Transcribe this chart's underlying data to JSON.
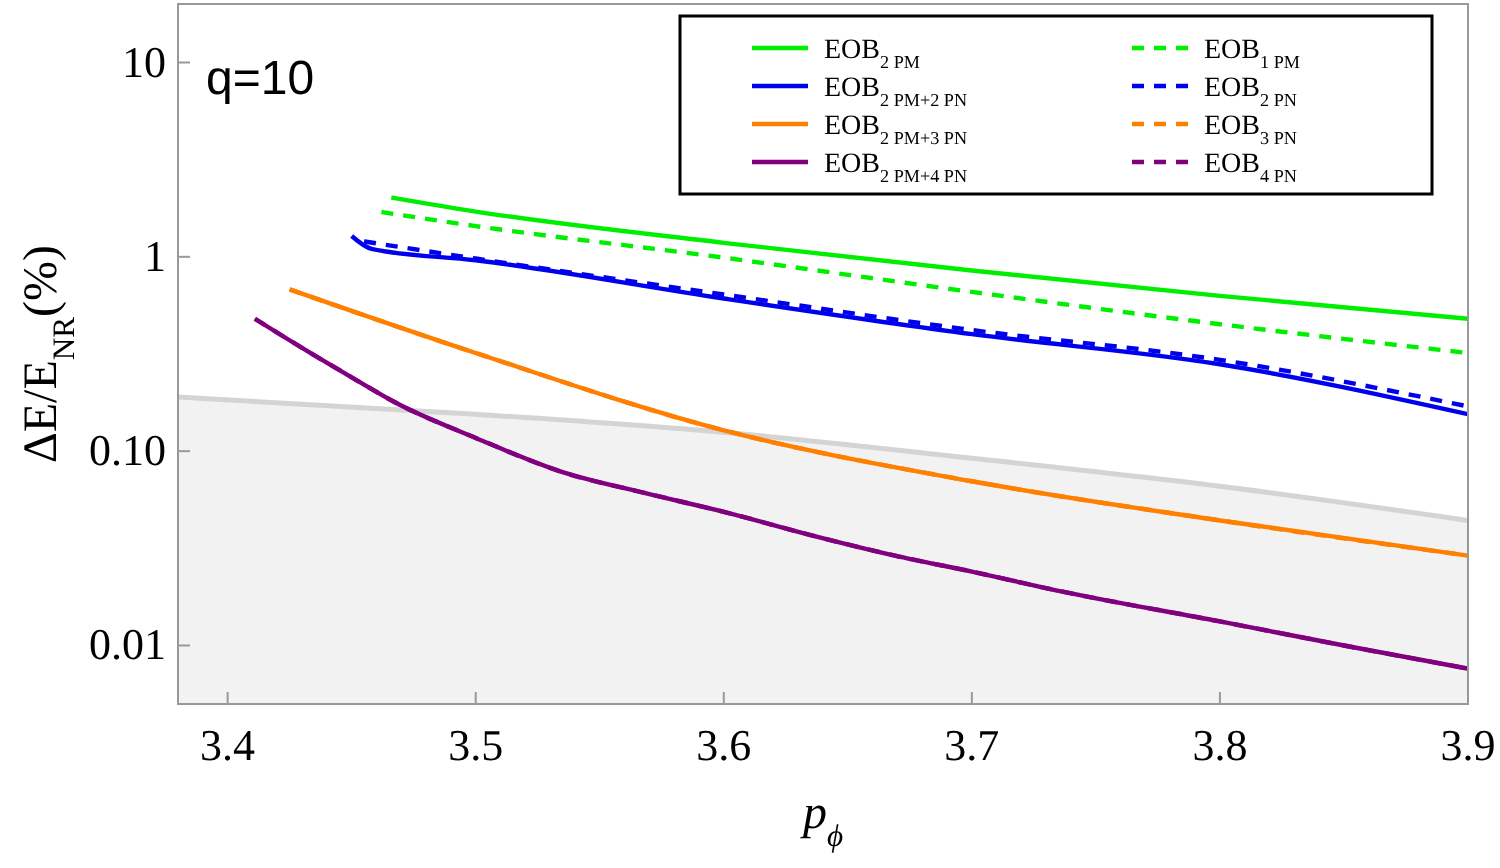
{
  "chart_data": {
    "type": "line",
    "xlabel": "p$_{ϕ}$",
    "ylabel": "ΔE/E$_{NR}$(%)",
    "annotations": [
      "q=10"
    ],
    "log": "y",
    "xlim": [
      3.38,
      3.9
    ],
    "xticks": [
      3.4,
      3.5,
      3.6,
      3.7,
      3.8,
      3.9
    ],
    "ylim": [
      0.005,
      20
    ],
    "yticks": [
      10,
      1,
      {
        "value": 0.1,
        "label": "0.10"
      },
      0.01
    ],
    "grid": false,
    "legend": "top right",
    "series": [
      {
        "name": "EOB$_{2 PM}$",
        "color": "#00ee00",
        "line_style": "solid",
        "x": [
          3.466,
          3.5,
          3.6,
          3.7,
          3.8,
          3.9
        ],
        "values": [
          2.02,
          1.71,
          1.18,
          0.85,
          0.63,
          0.48
        ]
      },
      {
        "name": "EOB$_{2 PM+2 PN}$",
        "color": "#0000ee",
        "line_style": "solid",
        "x": [
          3.45,
          3.458,
          3.5,
          3.6,
          3.7,
          3.8,
          3.9
        ],
        "values": [
          1.28,
          1.1,
          0.96,
          0.61,
          0.4,
          0.28,
          0.155
        ]
      },
      {
        "name": "EOB$_{2 PM+3 PN}$",
        "color": "#ff8000",
        "line_style": "solid",
        "x": [
          3.425,
          3.5,
          3.6,
          3.7,
          3.8,
          3.9
        ],
        "values": [
          0.68,
          0.32,
          0.128,
          0.07,
          0.044,
          0.029
        ]
      },
      {
        "name": "EOB$_{2 PM+4 PN}$",
        "color": "#800080",
        "line_style": "solid",
        "x": [
          3.411,
          3.43,
          3.45,
          3.468,
          3.5,
          3.535,
          3.568,
          3.602,
          3.635,
          3.669,
          3.7,
          3.736,
          3.8,
          3.85,
          3.9
        ],
        "values": [
          0.48,
          0.34,
          0.24,
          0.177,
          0.117,
          0.078,
          0.061,
          0.048,
          0.037,
          0.029,
          0.024,
          0.019,
          0.0133,
          0.01,
          0.0076
        ]
      },
      {
        "name": "EOB$_{1 PM}$",
        "color": "#00ee00",
        "line_style": "dashed",
        "x": [
          3.462,
          3.5,
          3.6,
          3.7,
          3.8,
          3.9
        ],
        "values": [
          1.7,
          1.44,
          0.99,
          0.66,
          0.45,
          0.32
        ]
      },
      {
        "name": "EOB$_{2 PN}$",
        "color": "#0000ee",
        "line_style": "dashed",
        "x": [
          3.455,
          3.5,
          3.6,
          3.7,
          3.8,
          3.9
        ],
        "values": [
          1.2,
          0.98,
          0.64,
          0.42,
          0.295,
          0.17
        ]
      },
      {
        "name": "EOB$_{3 PN}$",
        "color": "#ff8000",
        "line_style": "dashed",
        "x": [
          3.425,
          3.5,
          3.6,
          3.7,
          3.8,
          3.9
        ],
        "values": [
          0.68,
          0.32,
          0.128,
          0.07,
          0.044,
          0.029
        ]
      },
      {
        "name": "EOB$_{4 PN}$",
        "color": "#800080",
        "line_style": "dashed",
        "x": [
          3.411,
          3.43,
          3.45,
          3.468,
          3.5,
          3.535,
          3.568,
          3.602,
          3.635,
          3.669,
          3.7,
          3.736,
          3.8,
          3.85,
          3.9
        ],
        "values": [
          0.48,
          0.34,
          0.24,
          0.177,
          0.117,
          0.078,
          0.061,
          0.048,
          0.037,
          0.029,
          0.024,
          0.019,
          0.0133,
          0.01,
          0.0076
        ]
      },
      {
        "type": "area",
        "color": "#d4d4d4",
        "x": [
          3.38,
          3.5,
          3.6,
          3.7,
          3.8,
          3.9
        ],
        "values": [
          0.19,
          0.155,
          0.125,
          0.092,
          0.066,
          0.044
        ]
      }
    ]
  }
}
